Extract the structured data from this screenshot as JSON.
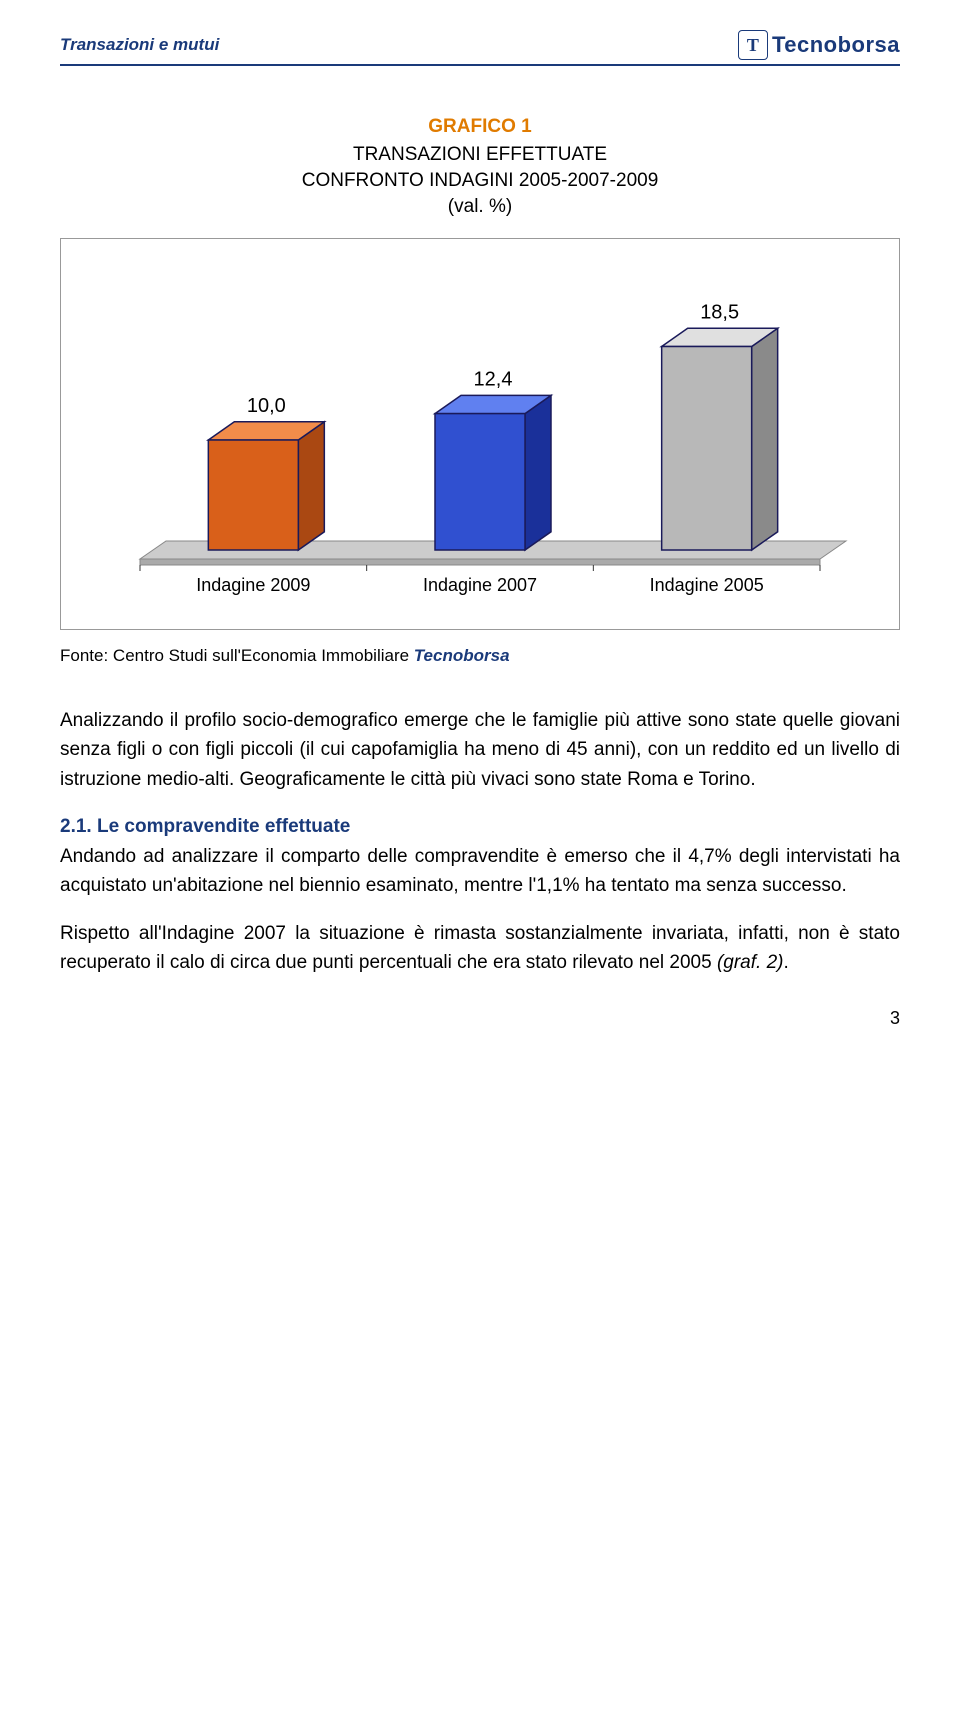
{
  "header": {
    "title": "Transazioni e mutui",
    "logo_letter": "T",
    "logo_text": "Tecnoborsa"
  },
  "chart": {
    "type": "3d-bar",
    "title": "GRAFICO 1",
    "subtitle1": "TRANSAZIONI EFFETTUATE",
    "subtitle2": "CONFRONTO INDAGINI 2005-2007-2009",
    "subtitle3": "(val. %)",
    "ylim": [
      0,
      20
    ],
    "categories": [
      "Indagine 2009",
      "Indagine 2007",
      "Indagine 2005"
    ],
    "values": [
      10.0,
      12.4,
      18.5
    ],
    "value_labels": [
      "10,0",
      "12,4",
      "18,5"
    ],
    "bar_colors": {
      "front": [
        "#d9601a",
        "#3050d0",
        "#b8b8b8"
      ],
      "side": [
        "#aa4812",
        "#1a309a",
        "#8a8a8a"
      ],
      "top": [
        "#f28c4a",
        "#6080f0",
        "#e0e0e0"
      ]
    },
    "floor_color": "#cccccc",
    "floor_edge": "#888888",
    "border_color": "#1a1a5a",
    "label_fontsize": 20,
    "cat_fontsize": 18,
    "background_color": "#ffffff"
  },
  "source": {
    "prefix": "Fonte: Centro Studi sull'Economia Immobiliare ",
    "brand": "Tecnoborsa"
  },
  "body": {
    "para1": "Analizzando il profilo socio-demografico emerge che le famiglie più attive sono state quelle giovani senza figli o con figli piccoli (il cui capofamiglia ha meno di 45 anni), con un reddito ed un livello di istruzione medio-alti. Geograficamente le città più vivaci sono state Roma e Torino.",
    "section_num": "2.1. ",
    "section_title": "Le compravendite effettuate",
    "para2": "Andando ad analizzare il comparto delle compravendite è emerso che il 4,7% degli intervistati ha acquistato un'abitazione nel biennio esaminato, mentre l'1,1% ha tentato ma senza successo.",
    "para3a": "Rispetto all'Indagine 2007 la situazione è rimasta sostanzialmente invariata, infatti, non è stato recuperato il calo di circa due punti percentuali che era stato rilevato nel 2005 ",
    "para3b": "(graf. 2)",
    "para3c": "."
  },
  "page_number": "3"
}
